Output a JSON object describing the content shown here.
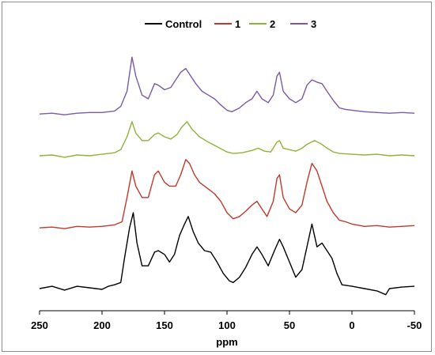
{
  "chart_data": {
    "type": "line",
    "title": "",
    "xlabel": "ppm",
    "ylabel": "",
    "xlim": [
      250,
      -50
    ],
    "x_reversed": true,
    "x_ticks": [
      250,
      200,
      150,
      100,
      50,
      0,
      -50
    ],
    "x_tick_labels": [
      "250",
      "200",
      "150",
      "100",
      "50",
      "0",
      "-50"
    ],
    "y_axis_shown": false,
    "grid": false,
    "legend_position": "top",
    "series": [
      {
        "name": "Control",
        "color": "#000000",
        "offset": 0,
        "points": [
          [
            250,
            0
          ],
          [
            240,
            3
          ],
          [
            230,
            -2
          ],
          [
            220,
            3
          ],
          [
            210,
            1
          ],
          [
            200,
            -1
          ],
          [
            195,
            3
          ],
          [
            190,
            5
          ],
          [
            185,
            8
          ],
          [
            182,
            40
          ],
          [
            178,
            80
          ],
          [
            175,
            100
          ],
          [
            172,
            60
          ],
          [
            168,
            30
          ],
          [
            163,
            30
          ],
          [
            158,
            48
          ],
          [
            155,
            50
          ],
          [
            150,
            45
          ],
          [
            146,
            35
          ],
          [
            142,
            45
          ],
          [
            138,
            70
          ],
          [
            134,
            85
          ],
          [
            131,
            95
          ],
          [
            127,
            75
          ],
          [
            123,
            60
          ],
          [
            118,
            50
          ],
          [
            113,
            48
          ],
          [
            108,
            35
          ],
          [
            103,
            20
          ],
          [
            98,
            10
          ],
          [
            95,
            8
          ],
          [
            90,
            15
          ],
          [
            85,
            28
          ],
          [
            80,
            45
          ],
          [
            76,
            55
          ],
          [
            72,
            45
          ],
          [
            67,
            30
          ],
          [
            62,
            50
          ],
          [
            58,
            65
          ],
          [
            55,
            55
          ],
          [
            50,
            35
          ],
          [
            45,
            15
          ],
          [
            40,
            25
          ],
          [
            36,
            55
          ],
          [
            32,
            85
          ],
          [
            28,
            55
          ],
          [
            24,
            60
          ],
          [
            20,
            50
          ],
          [
            16,
            40
          ],
          [
            12,
            20
          ],
          [
            8,
            5
          ],
          [
            0,
            3
          ],
          [
            -10,
            0
          ],
          [
            -20,
            -3
          ],
          [
            -27,
            -8
          ],
          [
            -30,
            0
          ],
          [
            -40,
            2
          ],
          [
            -50,
            3
          ]
        ]
      },
      {
        "name": "1",
        "color": "#c0392b",
        "offset": 80,
        "points": [
          [
            250,
            0
          ],
          [
            240,
            1
          ],
          [
            230,
            -1
          ],
          [
            220,
            2
          ],
          [
            210,
            1
          ],
          [
            200,
            2
          ],
          [
            190,
            4
          ],
          [
            184,
            8
          ],
          [
            180,
            40
          ],
          [
            176,
            75
          ],
          [
            173,
            55
          ],
          [
            168,
            40
          ],
          [
            163,
            40
          ],
          [
            158,
            70
          ],
          [
            155,
            75
          ],
          [
            150,
            60
          ],
          [
            146,
            55
          ],
          [
            141,
            55
          ],
          [
            137,
            70
          ],
          [
            133,
            90
          ],
          [
            130,
            85
          ],
          [
            126,
            70
          ],
          [
            122,
            60
          ],
          [
            118,
            55
          ],
          [
            114,
            50
          ],
          [
            110,
            45
          ],
          [
            105,
            35
          ],
          [
            100,
            20
          ],
          [
            95,
            12
          ],
          [
            90,
            15
          ],
          [
            85,
            22
          ],
          [
            80,
            30
          ],
          [
            76,
            35
          ],
          [
            72,
            25
          ],
          [
            68,
            15
          ],
          [
            63,
            35
          ],
          [
            60,
            65
          ],
          [
            58,
            70
          ],
          [
            55,
            40
          ],
          [
            50,
            25
          ],
          [
            45,
            20
          ],
          [
            40,
            30
          ],
          [
            36,
            60
          ],
          [
            32,
            85
          ],
          [
            28,
            75
          ],
          [
            24,
            55
          ],
          [
            20,
            35
          ],
          [
            15,
            20
          ],
          [
            10,
            10
          ],
          [
            5,
            8
          ],
          [
            0,
            5
          ],
          [
            -10,
            2
          ],
          [
            -20,
            3
          ],
          [
            -30,
            1
          ],
          [
            -40,
            2
          ],
          [
            -50,
            3
          ]
        ]
      },
      {
        "name": "2",
        "color": "#8fb339",
        "offset": 175,
        "points": [
          [
            250,
            0
          ],
          [
            240,
            1
          ],
          [
            230,
            -2
          ],
          [
            220,
            1
          ],
          [
            210,
            0
          ],
          [
            200,
            2
          ],
          [
            190,
            4
          ],
          [
            185,
            8
          ],
          [
            180,
            25
          ],
          [
            176,
            45
          ],
          [
            173,
            30
          ],
          [
            168,
            20
          ],
          [
            163,
            20
          ],
          [
            158,
            28
          ],
          [
            155,
            30
          ],
          [
            150,
            25
          ],
          [
            145,
            22
          ],
          [
            140,
            28
          ],
          [
            136,
            38
          ],
          [
            132,
            45
          ],
          [
            128,
            35
          ],
          [
            122,
            25
          ],
          [
            115,
            18
          ],
          [
            108,
            12
          ],
          [
            100,
            5
          ],
          [
            95,
            3
          ],
          [
            88,
            4
          ],
          [
            80,
            7
          ],
          [
            75,
            10
          ],
          [
            70,
            6
          ],
          [
            65,
            5
          ],
          [
            60,
            18
          ],
          [
            58,
            20
          ],
          [
            55,
            10
          ],
          [
            50,
            8
          ],
          [
            45,
            6
          ],
          [
            40,
            10
          ],
          [
            36,
            15
          ],
          [
            30,
            20
          ],
          [
            25,
            16
          ],
          [
            20,
            10
          ],
          [
            15,
            5
          ],
          [
            10,
            3
          ],
          [
            0,
            2
          ],
          [
            -10,
            1
          ],
          [
            -20,
            2
          ],
          [
            -30,
            0
          ],
          [
            -40,
            1
          ],
          [
            -50,
            0
          ]
        ]
      },
      {
        "name": "3",
        "color": "#7b5aa6",
        "offset": 230,
        "points": [
          [
            250,
            0
          ],
          [
            240,
            1
          ],
          [
            230,
            -1
          ],
          [
            220,
            1
          ],
          [
            210,
            2
          ],
          [
            200,
            2
          ],
          [
            190,
            4
          ],
          [
            185,
            10
          ],
          [
            180,
            30
          ],
          [
            176,
            75
          ],
          [
            173,
            50
          ],
          [
            168,
            25
          ],
          [
            163,
            20
          ],
          [
            158,
            40
          ],
          [
            155,
            38
          ],
          [
            150,
            32
          ],
          [
            145,
            35
          ],
          [
            141,
            45
          ],
          [
            137,
            55
          ],
          [
            133,
            60
          ],
          [
            129,
            50
          ],
          [
            125,
            40
          ],
          [
            120,
            30
          ],
          [
            115,
            25
          ],
          [
            110,
            20
          ],
          [
            105,
            12
          ],
          [
            100,
            5
          ],
          [
            96,
            3
          ],
          [
            90,
            8
          ],
          [
            85,
            15
          ],
          [
            80,
            20
          ],
          [
            76,
            30
          ],
          [
            72,
            20
          ],
          [
            67,
            15
          ],
          [
            63,
            25
          ],
          [
            60,
            50
          ],
          [
            58,
            55
          ],
          [
            55,
            30
          ],
          [
            50,
            20
          ],
          [
            45,
            15
          ],
          [
            40,
            20
          ],
          [
            36,
            38
          ],
          [
            32,
            45
          ],
          [
            28,
            42
          ],
          [
            24,
            40
          ],
          [
            20,
            30
          ],
          [
            15,
            18
          ],
          [
            10,
            8
          ],
          [
            5,
            6
          ],
          [
            0,
            5
          ],
          [
            -10,
            3
          ],
          [
            -20,
            2
          ],
          [
            -30,
            1
          ],
          [
            -40,
            2
          ],
          [
            -50,
            1
          ]
        ]
      }
    ]
  }
}
